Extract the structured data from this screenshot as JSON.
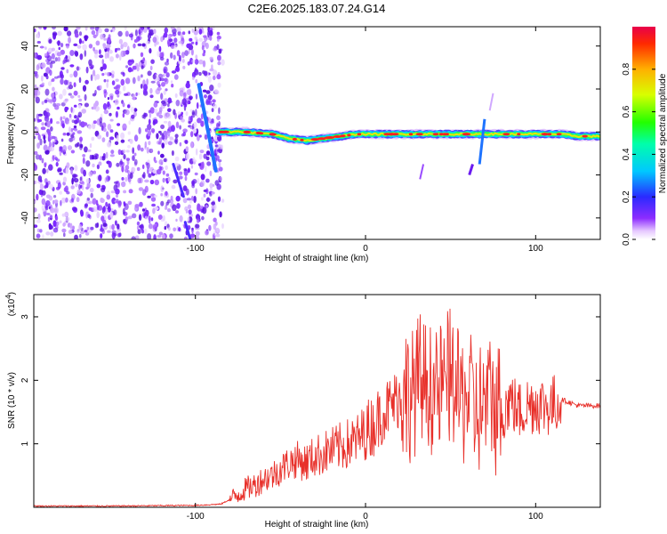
{
  "title": "C2E6.2025.183.07.24.G14",
  "chart_data": [
    {
      "type": "heatmap",
      "xlabel": "Height of straight line (km)",
      "ylabel": "Frequency (Hz)",
      "xlim": [
        -195,
        138
      ],
      "ylim": [
        -50,
        49
      ],
      "xticks": [
        -100,
        0,
        100
      ],
      "yticks": [
        -40,
        -20,
        0,
        20,
        40
      ],
      "colorbar": {
        "label": "Normalized spectral amplitude",
        "range": [
          0,
          1
        ],
        "ticks": [
          0.0,
          0.2,
          0.4,
          0.6,
          0.8
        ]
      },
      "ridge": {
        "description_values": "dominant frequency near 0 Hz for heights from about -88 km to 138 km",
        "x": [
          -88,
          -70,
          -55,
          -45,
          -35,
          -25,
          -15,
          -5,
          5,
          15,
          25,
          35,
          45,
          55,
          65,
          75,
          85,
          95,
          105,
          115,
          125,
          138
        ],
        "y": [
          0,
          0,
          -1,
          -3,
          -4,
          -3,
          -2,
          -1,
          -1,
          -1,
          -1,
          -1,
          -1,
          -1,
          -1,
          -1,
          -1,
          -1,
          -1,
          -1,
          -2,
          -2
        ]
      },
      "noise_region_x": [
        -195,
        -88
      ]
    },
    {
      "type": "line",
      "xlabel": "Height of straight line (km)",
      "ylabel": "SNR (10 * v/v)",
      "ylabel_multiplier": "(x10",
      "ylabel_exponent": "4",
      "xlim": [
        -195,
        138
      ],
      "ylim": [
        0,
        3.35
      ],
      "xticks": [
        -100,
        0,
        100
      ],
      "yticks": [
        1,
        2,
        3
      ],
      "color": "#e8302a",
      "series": [
        {
          "x": [
            -195,
            -150,
            -100,
            -85,
            -80,
            -75,
            -70,
            -65,
            -60,
            -55,
            -50,
            -45,
            -40,
            -35,
            -30,
            -25,
            -20,
            -15,
            -10,
            -5,
            0,
            5,
            10,
            15,
            20,
            25,
            30,
            35,
            40,
            45,
            50,
            55,
            60,
            65,
            70,
            75,
            80,
            85,
            90,
            95,
            100,
            105,
            110,
            115,
            120,
            125,
            130,
            138
          ],
          "y": [
            0.02,
            0.02,
            0.03,
            0.05,
            0.12,
            0.2,
            0.3,
            0.35,
            0.45,
            0.5,
            0.6,
            0.7,
            0.75,
            0.7,
            0.8,
            0.85,
            0.9,
            0.95,
            1.0,
            1.05,
            1.2,
            1.3,
            1.5,
            1.6,
            1.75,
            1.8,
            1.9,
            2.0,
            1.9,
            1.8,
            2.1,
            1.7,
            1.8,
            1.5,
            1.6,
            1.7,
            1.5,
            1.7,
            1.5,
            1.6,
            1.65,
            1.6,
            1.6,
            1.7,
            1.65,
            1.6,
            1.6,
            1.6
          ]
        }
      ]
    }
  ]
}
